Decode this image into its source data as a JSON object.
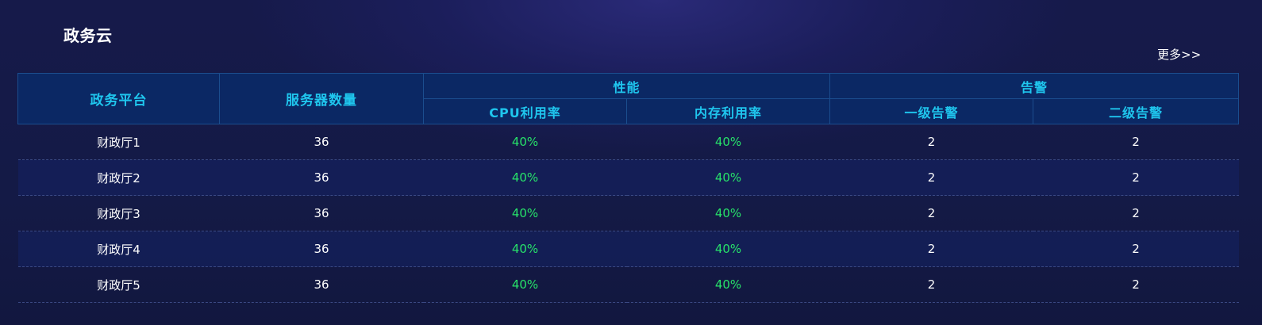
{
  "panel": {
    "title": "政务云",
    "more_label": "更多>>"
  },
  "table": {
    "headers": {
      "platform": "政务平台",
      "server_count": "服务器数量",
      "performance": "性能",
      "alarm": "告警",
      "cpu": "CPU利用率",
      "memory": "内存利用率",
      "alarm_level1": "一级告警",
      "alarm_level2": "二级告警"
    },
    "rows": [
      {
        "platform": "财政厅1",
        "servers": "36",
        "cpu": "40%",
        "memory": "40%",
        "level1": "2",
        "level2": "2"
      },
      {
        "platform": "财政厅2",
        "servers": "36",
        "cpu": "40%",
        "memory": "40%",
        "level1": "2",
        "level2": "2"
      },
      {
        "platform": "财政厅3",
        "servers": "36",
        "cpu": "40%",
        "memory": "40%",
        "level1": "2",
        "level2": "2"
      },
      {
        "platform": "财政厅4",
        "servers": "36",
        "cpu": "40%",
        "memory": "40%",
        "level1": "2",
        "level2": "2"
      },
      {
        "platform": "财政厅5",
        "servers": "36",
        "cpu": "40%",
        "memory": "40%",
        "level1": "2",
        "level2": "2"
      }
    ]
  },
  "colors": {
    "header_text": "#1fc6ee",
    "header_bg": "#0b2864",
    "percent_text": "#27e36a"
  }
}
